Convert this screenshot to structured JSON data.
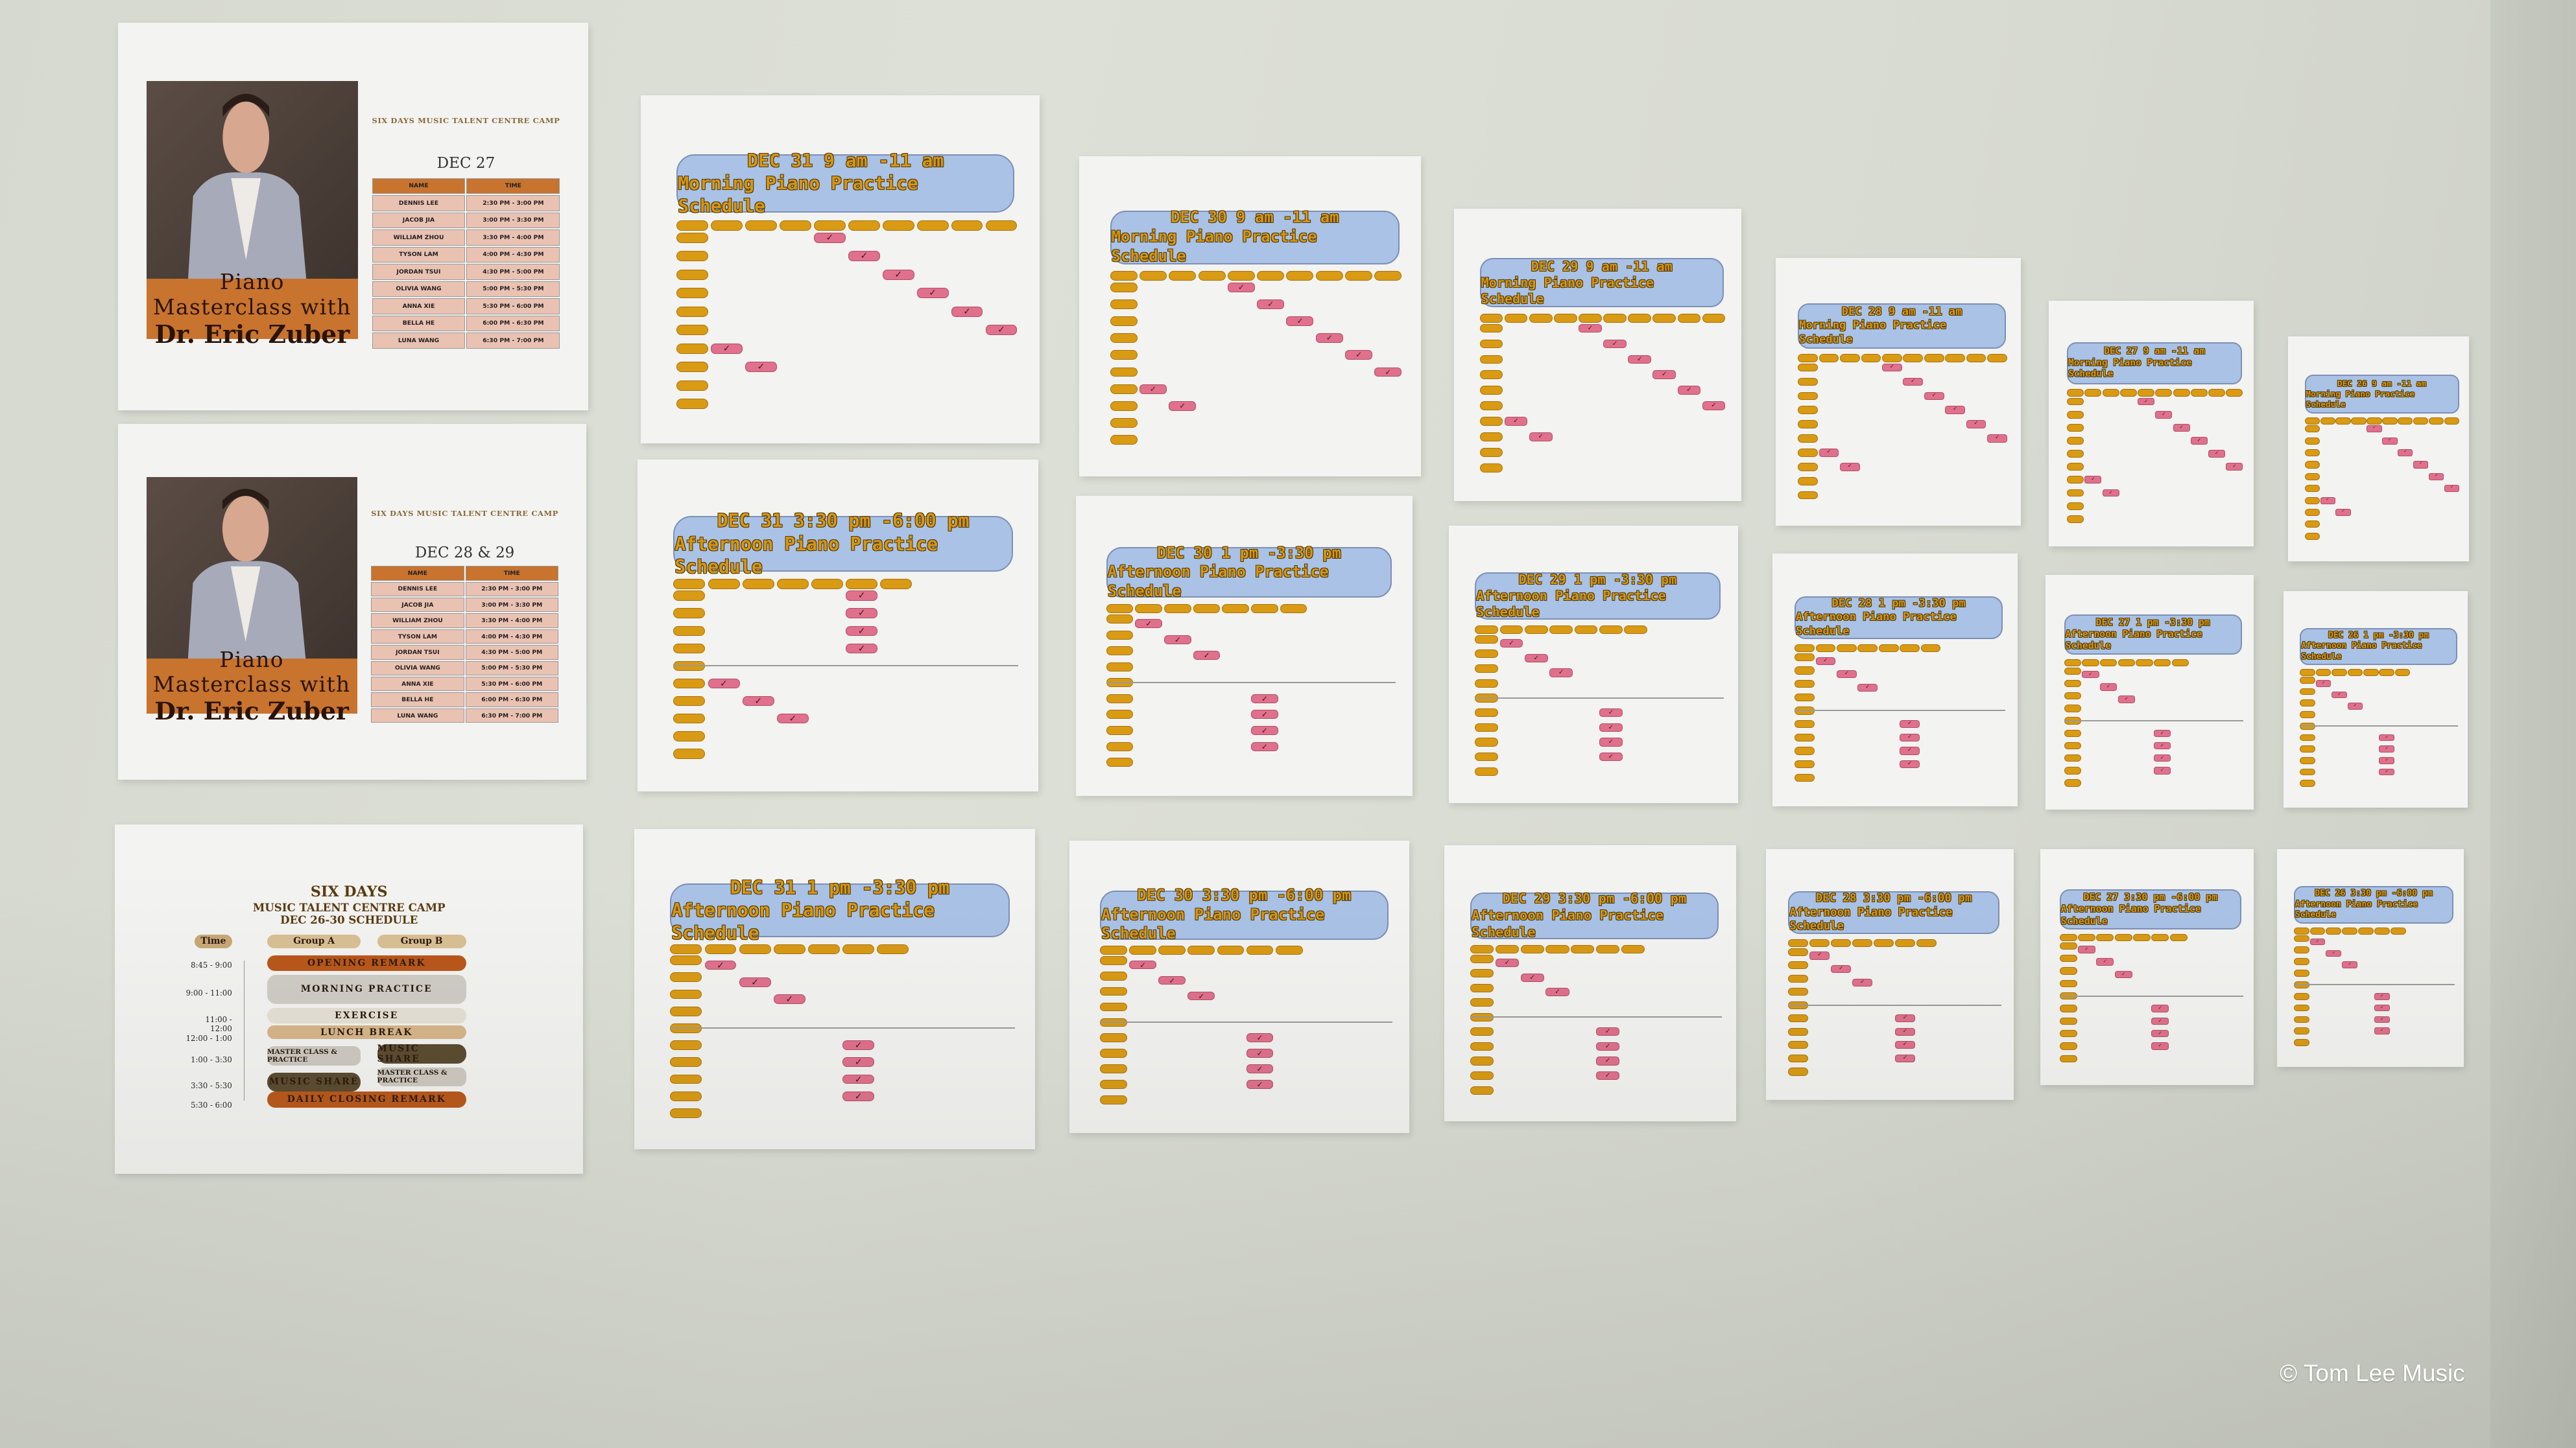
{
  "wall": {
    "copyright": "© Tom Lee Music"
  },
  "masterclass_posters": [
    {
      "banner_line1": "Piano Masterclass with",
      "banner_line2": "Dr. Eric Zuber",
      "camp_title": "SIX DAYS MUSIC TALENT CENTRE CAMP",
      "date": "DEC 27",
      "table_headers": [
        "NAME",
        "TIME"
      ],
      "rows": [
        {
          "name": "DENNIS LEE",
          "time": "2:30 PM - 3:00 PM"
        },
        {
          "name": "JACOB JIA",
          "time": "3:00 PM - 3:30 PM"
        },
        {
          "name": "WILLIAM ZHOU",
          "time": "3:30 PM - 4:00 PM"
        },
        {
          "name": "TYSON LAM",
          "time": "4:00 PM - 4:30 PM"
        },
        {
          "name": "JORDAN TSUI",
          "time": "4:30 PM - 5:00 PM"
        },
        {
          "name": "OLIVIA WANG",
          "time": "5:00 PM - 5:30 PM"
        },
        {
          "name": "ANNA XIE",
          "time": "5:30 PM - 6:00 PM"
        },
        {
          "name": "BELLA HE",
          "time": "6:00 PM - 6:30 PM"
        },
        {
          "name": "LUNA WANG",
          "time": "6:30 PM - 7:00 PM"
        }
      ]
    },
    {
      "banner_line1": "Piano Masterclass with",
      "banner_line2": "Dr. Eric Zuber",
      "camp_title": "SIX DAYS MUSIC TALENT CENTRE CAMP",
      "date": "DEC 28 & 29",
      "table_headers": [
        "NAME",
        "TIME"
      ],
      "rows": [
        {
          "name": "DENNIS LEE",
          "time": "2:30 PM - 3:00 PM"
        },
        {
          "name": "JACOB JIA",
          "time": "3:00 PM - 3:30 PM"
        },
        {
          "name": "WILLIAM ZHOU",
          "time": "3:30 PM - 4:00 PM"
        },
        {
          "name": "TYSON LAM",
          "time": "4:00 PM - 4:30 PM"
        },
        {
          "name": "JORDAN TSUI",
          "time": "4:30 PM - 5:00 PM"
        },
        {
          "name": "OLIVIA WANG",
          "time": "5:00 PM - 5:30 PM"
        },
        {
          "name": "ANNA XIE",
          "time": "5:30 PM - 6:00 PM"
        },
        {
          "name": "BELLA HE",
          "time": "6:00 PM - 6:30 PM"
        },
        {
          "name": "LUNA WANG",
          "time": "6:30 PM - 7:00 PM"
        }
      ]
    }
  ],
  "camp_schedule": {
    "title": "SIX DAYS",
    "subtitle": "MUSIC TALENT CENTRE CAMP",
    "dates": "DEC 26-30 SCHEDULE",
    "headers": [
      "Time",
      "Group A",
      "Group B"
    ],
    "times": [
      "8:45 - 9:00",
      "9:00 - 11:00",
      "11:00 - 12:00",
      "12:00 - 1:00",
      "1:00 - 3:30",
      "3:30 - 5:30",
      "5:30 - 6:00"
    ],
    "blocks": {
      "opening": "OPENING REMARK",
      "morning": "MORNING PRACTICE",
      "exercise": "EXERCISE",
      "lunch": "LUNCH BREAK",
      "a_master": "MASTER CLASS & PRACTICE",
      "b_share": "MUSIC SHARE",
      "a_share": "MUSIC SHARE",
      "b_master": "MASTER CLASS & PRACTICE",
      "closing": "DAILY CLOSING REMARK"
    }
  },
  "practice_schedules": [
    {
      "line1": "DEC 31 9 am -11 am",
      "line2": "Morning Piano Practice Schedule"
    },
    {
      "line1": "DEC 30 9 am -11 am",
      "line2": "Morning Piano Practice Schedule"
    },
    {
      "line1": "DEC 29 9 am -11 am",
      "line2": "Morning Piano Practice Schedule"
    },
    {
      "line1": "DEC 28 9 am -11 am",
      "line2": "Morning Piano Practice Schedule"
    },
    {
      "line1": "DEC 27 9 am -11 am",
      "line2": "Morning Piano Practice Schedule"
    },
    {
      "line1": "DEC 26 9 am -11 am",
      "line2": "Morning Piano Practice Schedule"
    },
    {
      "line1": "DEC 31 3:30 pm -6:00 pm",
      "line2": "Afternoon Piano Practice Schedule"
    },
    {
      "line1": "DEC 30 1 pm -3:30 pm",
      "line2": "Afternoon Piano Practice Schedule"
    },
    {
      "line1": "DEC 29 1 pm -3:30 pm",
      "line2": "Afternoon Piano Practice Schedule"
    },
    {
      "line1": "DEC 28 1 pm -3:30 pm",
      "line2": "Afternoon Piano Practice Schedule"
    },
    {
      "line1": "DEC 27 1 pm -3:30 pm",
      "line2": "Afternoon Piano Practice Schedule"
    },
    {
      "line1": "DEC 26 1 pm -3:30 pm",
      "line2": "Afternoon Piano Practice Schedule"
    },
    {
      "line1": "DEC 31 1 pm -3:30 pm",
      "line2": "Afternoon Piano Practice Schedule"
    },
    {
      "line1": "DEC 30 3:30 pm -6:00 pm",
      "line2": "Afternoon Piano Practice Schedule"
    },
    {
      "line1": "DEC 29 3:30 pm -6:00 pm",
      "line2": "Afternoon Piano Practice Schedule"
    },
    {
      "line1": "DEC 28 3:30 pm -6:00 pm",
      "line2": "Afternoon Piano Practice Schedule"
    },
    {
      "line1": "DEC 27 3:30 pm -6:00 pm",
      "line2": "Afternoon Piano Practice Schedule"
    },
    {
      "line1": "DEC 26 3:30 pm -6:00 pm",
      "line2": "Afternoon Piano Practice Schedule"
    }
  ],
  "colors": {
    "wall": "#d9dcd3",
    "header_blue": "#a9c2e6",
    "pill_orange": "#d99a14",
    "check_pink": "#e0708c",
    "banner_orange": "#c8732e"
  }
}
